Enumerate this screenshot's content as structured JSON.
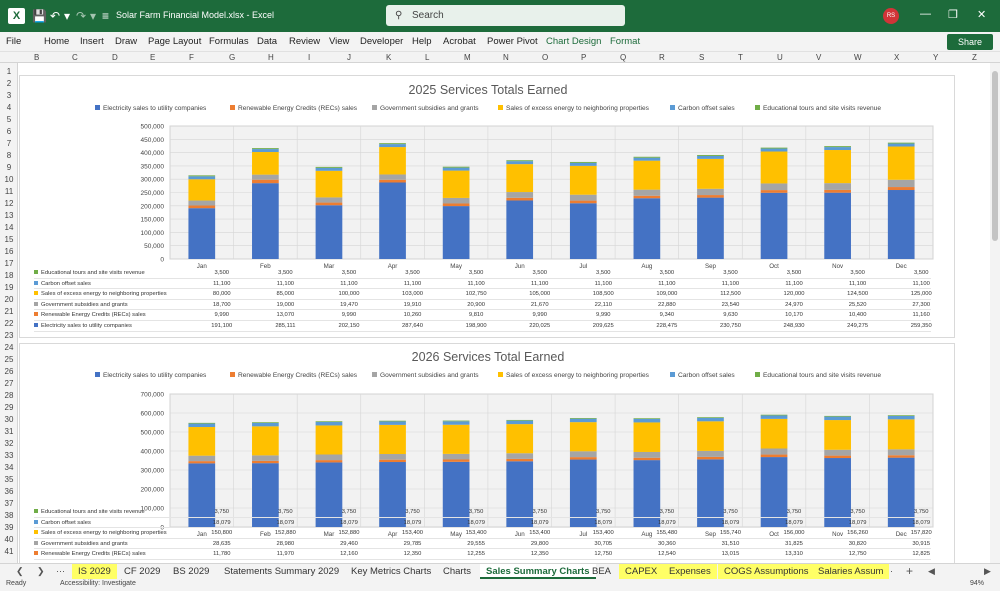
{
  "window": {
    "title": "Solar Farm Financial Model.xlsx  -  Excel",
    "search_placeholder": "Search",
    "user_initials": "RS"
  },
  "menu": [
    "File",
    "Home",
    "Insert",
    "Draw",
    "Page Layout",
    "Formulas",
    "Data",
    "Review",
    "View",
    "Developer",
    "Help",
    "Acrobat",
    "Power Pivot",
    "Chart Design",
    "Format"
  ],
  "share_label": "Share",
  "columns": [
    "B",
    "C",
    "D",
    "E",
    "F",
    "G",
    "H",
    "I",
    "J",
    "K",
    "L",
    "M",
    "N",
    "O",
    "P",
    "Q",
    "R",
    "S",
    "T",
    "U",
    "V",
    "W",
    "X",
    "Y",
    "Z"
  ],
  "rows": [
    "1",
    "2",
    "3",
    "4",
    "5",
    "6",
    "7",
    "8",
    "9",
    "10",
    "11",
    "12",
    "13",
    "14",
    "15",
    "16",
    "17",
    "18",
    "19",
    "20",
    "21",
    "22",
    "23",
    "24",
    "25",
    "26",
    "27",
    "28",
    "29",
    "30",
    "31",
    "32",
    "33",
    "34",
    "35",
    "36",
    "37",
    "38",
    "39",
    "40",
    "41"
  ],
  "series_names": [
    "Electricity sales to utility companies",
    "Renewable Energy Credits (RECs) sales",
    "Government subsidies and grants",
    "Sales of excess energy to neighboring properties",
    "Carbon offset sales",
    "Educational tours and site visits revenue"
  ],
  "series_colors": [
    "#4472c4",
    "#ed7d31",
    "#a5a5a5",
    "#ffc000",
    "#5b9bd5",
    "#70ad47"
  ],
  "chart_data": [
    {
      "type": "bar",
      "stacked": true,
      "title": "2025 Services Totals Earned",
      "categories": [
        "Jan",
        "Feb",
        "Mar",
        "Apr",
        "May",
        "Jun",
        "Jul",
        "Aug",
        "Sep",
        "Oct",
        "Nov",
        "Dec"
      ],
      "ylim": [
        0,
        500000
      ],
      "yticks": [
        "0",
        "50,000",
        "100,000",
        "150,000",
        "200,000",
        "250,000",
        "300,000",
        "350,000",
        "400,000",
        "450,000",
        "500,000"
      ],
      "legend": "top",
      "grid": true,
      "series": [
        {
          "name": "Electricity sales to utility companies",
          "values": [
            191100,
            285111,
            202150,
            287640,
            198900,
            220025,
            209625,
            228475,
            230750,
            248930,
            249275,
            259350
          ]
        },
        {
          "name": "Renewable Energy Credits (RECs) sales",
          "values": [
            9990,
            13070,
            9990,
            10260,
            9810,
            9990,
            9990,
            9340,
            9630,
            10170,
            10400,
            11160
          ]
        },
        {
          "name": "Government subsidies and grants",
          "values": [
            18700,
            19000,
            19470,
            19910,
            20900,
            21670,
            22110,
            22880,
            23540,
            24970,
            25520,
            27300
          ]
        },
        {
          "name": "Sales of excess energy to neighboring properties",
          "values": [
            80000,
            85000,
            100000,
            103000,
            102750,
            105000,
            108500,
            109000,
            112500,
            120000,
            124500,
            125000
          ]
        },
        {
          "name": "Carbon offset sales",
          "values": [
            11100,
            11100,
            11100,
            11100,
            11100,
            11100,
            11100,
            11100,
            11100,
            11100,
            11100,
            11100
          ]
        },
        {
          "name": "Educational tours and site visits revenue",
          "values": [
            3500,
            3500,
            3500,
            3500,
            3500,
            3500,
            3500,
            3500,
            3500,
            3500,
            3500,
            3500
          ]
        }
      ],
      "table_rows": [
        {
          "label": "Educational tours and site visits revenue",
          "cells": [
            "3,500",
            "3,500",
            "3,500",
            "3,500",
            "3,500",
            "3,500",
            "3,500",
            "3,500",
            "3,500",
            "3,500",
            "3,500",
            "3,500"
          ]
        },
        {
          "label": "Carbon offset sales",
          "cells": [
            "11,100",
            "11,100",
            "11,100",
            "11,100",
            "11,100",
            "11,100",
            "11,100",
            "11,100",
            "11,100",
            "11,100",
            "11,100",
            "11,100"
          ]
        },
        {
          "label": "Sales of excess energy to neighboring properties",
          "cells": [
            "80,000",
            "85,000",
            "100,000",
            "103,000",
            "102,750",
            "105,000",
            "108,500",
            "109,000",
            "112,500",
            "120,000",
            "124,500",
            "125,000"
          ]
        },
        {
          "label": "Government subsidies and grants",
          "cells": [
            "18,700",
            "19,000",
            "19,470",
            "19,910",
            "20,900",
            "21,670",
            "22,110",
            "22,880",
            "23,540",
            "24,970",
            "25,520",
            "27,300"
          ]
        },
        {
          "label": "Renewable Energy Credits (RECs) sales",
          "cells": [
            "9,990",
            "13,070",
            "9,990",
            "10,260",
            "9,810",
            "9,990",
            "9,990",
            "9,340",
            "9,630",
            "10,170",
            "10,400",
            "11,160"
          ]
        },
        {
          "label": "Electricity sales to utility companies",
          "cells": [
            "191,100",
            "285,111",
            "202,150",
            "287,640",
            "198,900",
            "220,025",
            "209,625",
            "228,475",
            "230,750",
            "248,930",
            "249,275",
            "259,350"
          ]
        }
      ]
    },
    {
      "type": "bar",
      "stacked": true,
      "title": "2026 Services Total Earned",
      "categories": [
        "Jan",
        "Feb",
        "Mar",
        "Apr",
        "May",
        "Jun",
        "Jul",
        "Aug",
        "Sep",
        "Oct",
        "Nov",
        "Dec"
      ],
      "ylim": [
        0,
        700000
      ],
      "yticks": [
        "0",
        "100,000",
        "200,000",
        "300,000",
        "400,000",
        "500,000",
        "600,000",
        "700,000"
      ],
      "legend": "top",
      "grid": true,
      "series": [
        {
          "name": "Electricity sales to utility companies",
          "values": [
            335000,
            336000,
            340000,
            342000,
            343000,
            346000,
            355000,
            352000,
            356000,
            368000,
            363000,
            365000
          ]
        },
        {
          "name": "Renewable Energy Credits (RECs) sales",
          "values": [
            11780,
            11970,
            12160,
            12350,
            12255,
            12350,
            12750,
            12540,
            13015,
            13310,
            12750,
            12825
          ]
        },
        {
          "name": "Government subsidies and grants",
          "values": [
            28635,
            28980,
            29460,
            29785,
            29555,
            29800,
            30705,
            30360,
            31510,
            31825,
            30820,
            30915
          ]
        },
        {
          "name": "Sales of excess energy to neighboring properties",
          "values": [
            150800,
            152880,
            152880,
            153400,
            153400,
            153400,
            153400,
            155480,
            155740,
            156000,
            156260,
            157820
          ]
        },
        {
          "name": "Carbon offset sales",
          "values": [
            18079,
            18079,
            18079,
            18079,
            18079,
            18079,
            18079,
            18079,
            18079,
            18079,
            18079,
            18079
          ]
        },
        {
          "name": "Educational tours and site visits revenue",
          "values": [
            3750,
            3750,
            3750,
            3750,
            3750,
            3750,
            3750,
            3750,
            3750,
            3750,
            3750,
            3750
          ]
        }
      ],
      "table_rows": [
        {
          "label": "Educational tours and site visits revenue",
          "cells": [
            "3,750",
            "3,750",
            "3,750",
            "3,750",
            "3,750",
            "3,750",
            "3,750",
            "3,750",
            "3,750",
            "3,750",
            "3,750",
            "3,750"
          ]
        },
        {
          "label": "Carbon offset sales",
          "cells": [
            "18,079",
            "18,079",
            "18,079",
            "18,079",
            "18,079",
            "18,079",
            "18,079",
            "18,079",
            "18,079",
            "18,079",
            "18,079",
            "18,079"
          ]
        },
        {
          "label": "Sales of excess energy to neighboring properties",
          "cells": [
            "150,800",
            "152,880",
            "152,880",
            "153,400",
            "153,400",
            "153,400",
            "153,400",
            "155,480",
            "155,740",
            "156,000",
            "156,260",
            "157,820"
          ]
        },
        {
          "label": "Government subsidies and grants",
          "cells": [
            "28,635",
            "28,980",
            "29,460",
            "29,785",
            "29,555",
            "29,800",
            "30,705",
            "30,360",
            "31,510",
            "31,825",
            "30,820",
            "30,915"
          ]
        },
        {
          "label": "Renewable Energy Credits (RECs) sales",
          "cells": [
            "11,780",
            "11,970",
            "12,160",
            "12,350",
            "12,255",
            "12,350",
            "12,750",
            "12,540",
            "13,015",
            "13,310",
            "12,750",
            "12,825"
          ]
        }
      ]
    }
  ],
  "tabs": [
    {
      "label": "IS 2029",
      "yellow": true
    },
    {
      "label": "CF 2029",
      "yellow": false
    },
    {
      "label": "BS 2029",
      "yellow": false
    },
    {
      "label": "Statements Summary 2029",
      "yellow": false
    },
    {
      "label": "Key Metrics Charts",
      "yellow": false
    },
    {
      "label": "Charts",
      "yellow": false
    },
    {
      "label": "Sales Summary Charts",
      "yellow": false,
      "active": true
    },
    {
      "label": "BEA",
      "yellow": false
    },
    {
      "label": "CAPEX",
      "yellow": true
    },
    {
      "label": "Expenses",
      "yellow": true
    },
    {
      "label": "COGS Assumptions",
      "yellow": true
    },
    {
      "label": "Salaries Assum",
      "yellow": true
    }
  ],
  "status": {
    "ready": "Ready",
    "accessibility": "Accessibility: Investigate",
    "zoom": "94%"
  }
}
